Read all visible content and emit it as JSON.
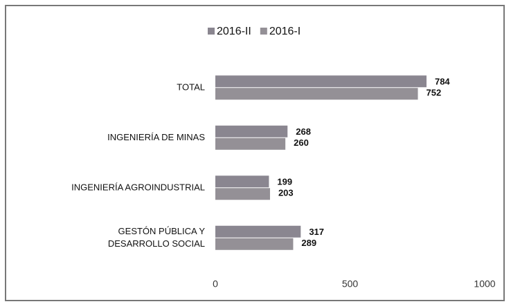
{
  "chart_data": {
    "type": "bar",
    "orientation": "horizontal",
    "categories": [
      "TOTAL",
      "INGENIERÍA DE MINAS",
      "INGENIERÍA AGROINDUSTRIAL",
      "GESTÓN PÚBLICA Y\nDESARROLLO SOCIAL"
    ],
    "series": [
      {
        "name": "2016-II",
        "color": "#8a8690",
        "values": [
          784,
          268,
          199,
          317
        ]
      },
      {
        "name": "2016-I",
        "color": "#949096",
        "values": [
          752,
          260,
          203,
          289
        ]
      }
    ],
    "xlim": [
      0,
      1000
    ],
    "xticks": [
      0,
      500,
      1000
    ],
    "grid": false,
    "legend": "top"
  }
}
